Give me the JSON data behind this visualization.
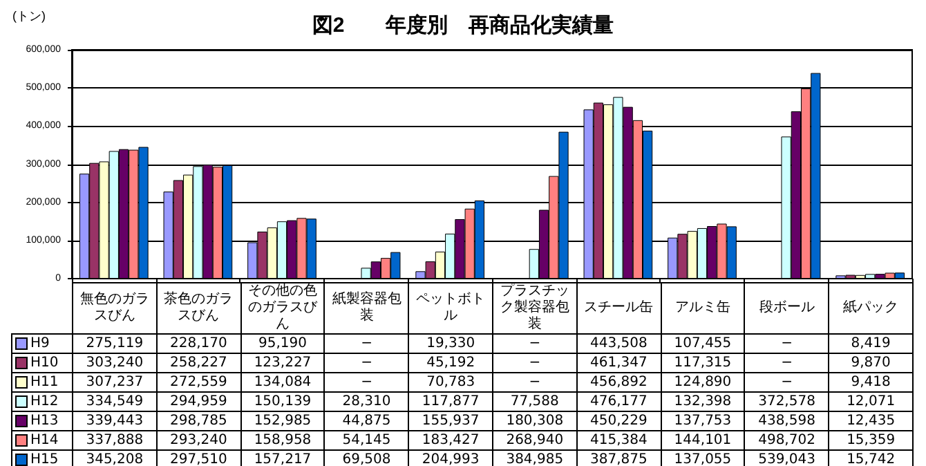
{
  "chart_data": {
    "type": "bar",
    "title": "図2　　年度別　再商品化実績量",
    "ylabel": "(トン)",
    "categories": [
      "無色のガラスびん",
      "茶色のガラスびん",
      "その他の色のガラスびん",
      "紙製容器包装",
      "ペットボトル",
      "プラスチック製容器包装",
      "スチール缶",
      "アルミ缶",
      "段ボール",
      "紙パック"
    ],
    "series": [
      {
        "name": "H9",
        "color": "#9999ff",
        "values": [
          275119,
          228170,
          95190,
          null,
          19330,
          null,
          443508,
          107455,
          null,
          8419
        ],
        "value_labels": [
          "275,119",
          "228,170",
          "95,190",
          "−",
          "19,330",
          "−",
          "443,508",
          "107,455",
          "−",
          "8,419"
        ]
      },
      {
        "name": "H10",
        "color": "#993366",
        "values": [
          303240,
          258227,
          123227,
          null,
          45192,
          null,
          461347,
          117315,
          null,
          9870
        ],
        "value_labels": [
          "303,240",
          "258,227",
          "123,227",
          "−",
          "45,192",
          "−",
          "461,347",
          "117,315",
          "−",
          "9,870"
        ]
      },
      {
        "name": "H11",
        "color": "#ffffcc",
        "values": [
          307237,
          272559,
          134084,
          null,
          70783,
          null,
          456892,
          124890,
          null,
          9418
        ],
        "value_labels": [
          "307,237",
          "272,559",
          "134,084",
          "−",
          "70,783",
          "−",
          "456,892",
          "124,890",
          "−",
          "9,418"
        ]
      },
      {
        "name": "H12",
        "color": "#ccffff",
        "values": [
          334549,
          294959,
          150139,
          28310,
          117877,
          77588,
          476177,
          132398,
          372578,
          12071
        ],
        "value_labels": [
          "334,549",
          "294,959",
          "150,139",
          "28,310",
          "117,877",
          "77,588",
          "476,177",
          "132,398",
          "372,578",
          "12,071"
        ]
      },
      {
        "name": "H13",
        "color": "#660066",
        "values": [
          339443,
          298785,
          152985,
          44875,
          155937,
          180308,
          450229,
          137753,
          438598,
          12435
        ],
        "value_labels": [
          "339,443",
          "298,785",
          "152,985",
          "44,875",
          "155,937",
          "180,308",
          "450,229",
          "137,753",
          "438,598",
          "12,435"
        ]
      },
      {
        "name": "H14",
        "color": "#ff8080",
        "values": [
          337888,
          293240,
          158958,
          54145,
          183427,
          268940,
          415384,
          144101,
          498702,
          15359
        ],
        "value_labels": [
          "337,888",
          "293,240",
          "158,958",
          "54,145",
          "183,427",
          "268,940",
          "415,384",
          "144,101",
          "498,702",
          "15,359"
        ]
      },
      {
        "name": "H15",
        "color": "#0066cc",
        "values": [
          345208,
          297510,
          157217,
          69508,
          204993,
          384985,
          387875,
          137055,
          539043,
          15742
        ],
        "value_labels": [
          "345,208",
          "297,510",
          "157,217",
          "69,508",
          "204,993",
          "384,985",
          "387,875",
          "137,055",
          "539,043",
          "15,742"
        ]
      }
    ],
    "ylim": [
      0,
      600000
    ],
    "yticks": [
      {
        "value": 0,
        "label": "0"
      },
      {
        "value": 100000,
        "label": "100,000"
      },
      {
        "value": 200000,
        "label": "200,000"
      },
      {
        "value": 300000,
        "label": "300,000"
      },
      {
        "value": 400000,
        "label": "400,000"
      },
      {
        "value": 500000,
        "label": "500,000"
      },
      {
        "value": 600000,
        "label": "600,000"
      }
    ],
    "grid": "y",
    "legend": "bottom left"
  }
}
